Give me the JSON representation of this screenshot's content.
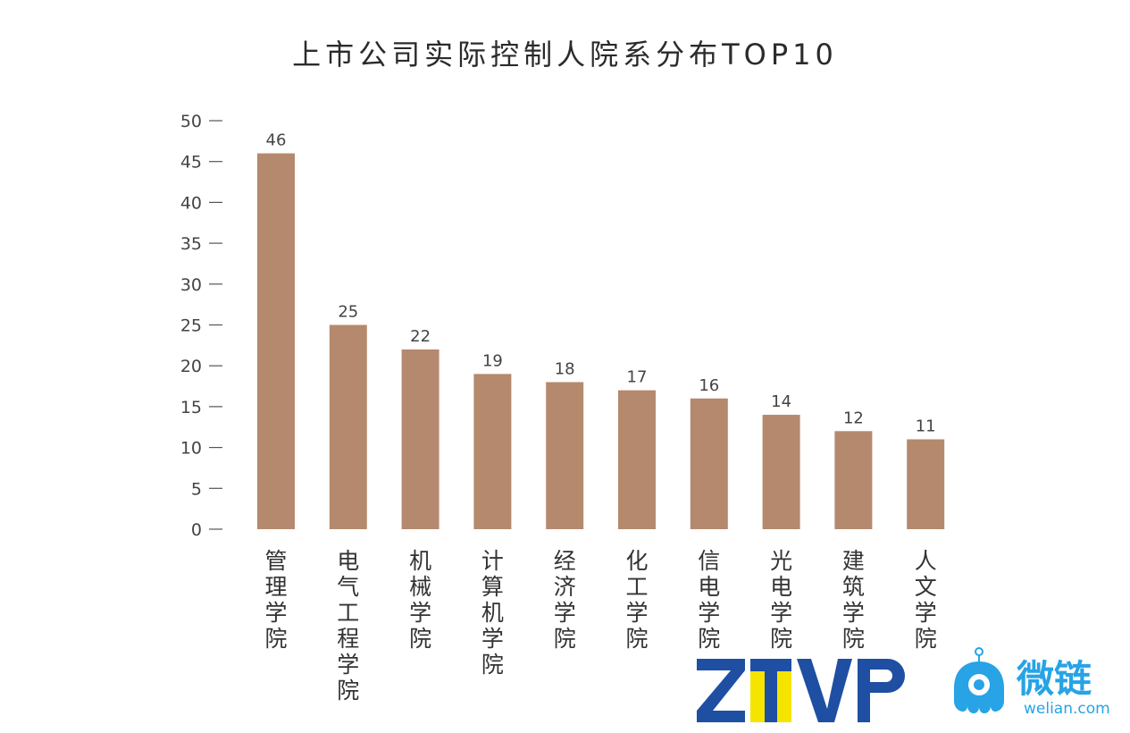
{
  "chart_data": {
    "type": "bar",
    "title": "上市公司实际控制人院系分布TOP10",
    "categories": [
      "管理学院",
      "电气工程学院",
      "机械学院",
      "计算机学院",
      "经济学院",
      "化工学院",
      "信电学院",
      "光电学院",
      "建筑学院",
      "人文学院"
    ],
    "values": [
      46,
      25,
      22,
      19,
      18,
      17,
      16,
      14,
      12,
      11
    ],
    "ylim": [
      0,
      50
    ],
    "yticks": [
      0,
      5,
      10,
      15,
      20,
      25,
      30,
      35,
      40,
      45,
      50
    ],
    "bar_color": "#b5896d",
    "grid": false,
    "legend": "none"
  },
  "logos": {
    "ztvp": {
      "text": "ZTVP",
      "blue": "#1e4fa3",
      "yellow": "#f5e400"
    },
    "welian": {
      "cn": "微链",
      "en": "welian.com",
      "color": "#27a3e6"
    }
  }
}
